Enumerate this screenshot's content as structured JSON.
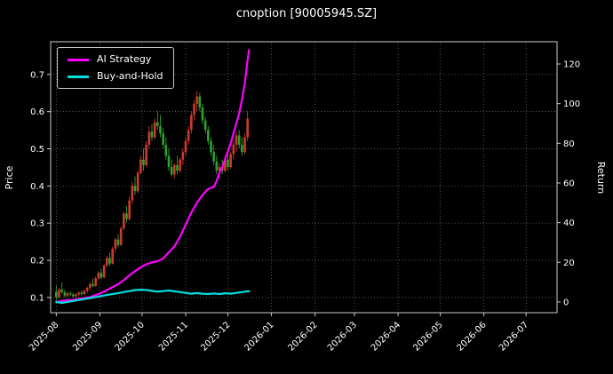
{
  "chart_data": {
    "type": "candlestick",
    "title": "cnoption [90005945.SZ]",
    "xlabel": "",
    "ylabel_left": "Price",
    "ylabel_right": "Return",
    "x_ticks": [
      "2025-08",
      "2025-09",
      "2025-10",
      "2025-11",
      "2025-12",
      "2026-01",
      "2026-02",
      "2026-03",
      "2026-04",
      "2026-05",
      "2026-06",
      "2026-07"
    ],
    "x_tick_days": [
      0,
      31,
      61,
      92,
      122,
      153,
      184,
      212,
      243,
      273,
      304,
      334
    ],
    "x_range": [
      -4,
      356
    ],
    "left_ticks": [
      0.1,
      0.2,
      0.3,
      0.4,
      0.5,
      0.6,
      0.7
    ],
    "left_range": [
      0.059,
      0.788
    ],
    "right_ticks": [
      0,
      20,
      40,
      60,
      80,
      100,
      120
    ],
    "right_range": [
      -5.4,
      131.2
    ],
    "grid": true,
    "legend_position": "upper-left",
    "colors": {
      "background": "#000000",
      "up": "#cc3a2b",
      "down": "#2da12f",
      "grid": "#787878",
      "frame": "#cccccc",
      "text": "#ffffff",
      "ai_strategy": "#ff00ff",
      "buy_and_hold": "#00dede"
    },
    "candles": [
      [
        0,
        0.115,
        0.132,
        0.092,
        0.101
      ],
      [
        2,
        0.101,
        0.126,
        0.096,
        0.121
      ],
      [
        4,
        0.121,
        0.141,
        0.11,
        0.114
      ],
      [
        6,
        0.114,
        0.121,
        0.1,
        0.105
      ],
      [
        8,
        0.105,
        0.116,
        0.1,
        0.111
      ],
      [
        10,
        0.111,
        0.116,
        0.104,
        0.108
      ],
      [
        12,
        0.108,
        0.112,
        0.099,
        0.103
      ],
      [
        14,
        0.103,
        0.111,
        0.097,
        0.108
      ],
      [
        16,
        0.108,
        0.116,
        0.103,
        0.113
      ],
      [
        18,
        0.113,
        0.119,
        0.105,
        0.109
      ],
      [
        20,
        0.109,
        0.121,
        0.106,
        0.118
      ],
      [
        22,
        0.118,
        0.129,
        0.112,
        0.126
      ],
      [
        24,
        0.126,
        0.141,
        0.12,
        0.136
      ],
      [
        26,
        0.136,
        0.151,
        0.127,
        0.131
      ],
      [
        28,
        0.131,
        0.156,
        0.129,
        0.152
      ],
      [
        30,
        0.152,
        0.171,
        0.146,
        0.166
      ],
      [
        32,
        0.166,
        0.176,
        0.149,
        0.154
      ],
      [
        34,
        0.154,
        0.191,
        0.151,
        0.186
      ],
      [
        36,
        0.186,
        0.212,
        0.181,
        0.206
      ],
      [
        38,
        0.206,
        0.221,
        0.184,
        0.191
      ],
      [
        40,
        0.191,
        0.236,
        0.189,
        0.231
      ],
      [
        42,
        0.231,
        0.261,
        0.221,
        0.256
      ],
      [
        44,
        0.256,
        0.271,
        0.234,
        0.241
      ],
      [
        46,
        0.241,
        0.291,
        0.238,
        0.286
      ],
      [
        48,
        0.286,
        0.331,
        0.281,
        0.326
      ],
      [
        50,
        0.326,
        0.346,
        0.301,
        0.311
      ],
      [
        52,
        0.311,
        0.371,
        0.306,
        0.361
      ],
      [
        54,
        0.361,
        0.411,
        0.351,
        0.401
      ],
      [
        56,
        0.401,
        0.426,
        0.376,
        0.386
      ],
      [
        58,
        0.386,
        0.441,
        0.381,
        0.436
      ],
      [
        60,
        0.436,
        0.481,
        0.431,
        0.471
      ],
      [
        62,
        0.471,
        0.501,
        0.441,
        0.456
      ],
      [
        64,
        0.456,
        0.521,
        0.451,
        0.511
      ],
      [
        66,
        0.511,
        0.561,
        0.501,
        0.546
      ],
      [
        68,
        0.546,
        0.566,
        0.521,
        0.531
      ],
      [
        70,
        0.531,
        0.581,
        0.526,
        0.571
      ],
      [
        72,
        0.571,
        0.601,
        0.551,
        0.561
      ],
      [
        74,
        0.561,
        0.591,
        0.531,
        0.541
      ],
      [
        76,
        0.541,
        0.556,
        0.501,
        0.511
      ],
      [
        78,
        0.511,
        0.531,
        0.471,
        0.481
      ],
      [
        80,
        0.481,
        0.501,
        0.441,
        0.451
      ],
      [
        82,
        0.451,
        0.471,
        0.426,
        0.431
      ],
      [
        84,
        0.431,
        0.461,
        0.421,
        0.456
      ],
      [
        86,
        0.456,
        0.481,
        0.431,
        0.441
      ],
      [
        88,
        0.441,
        0.476,
        0.436,
        0.471
      ],
      [
        90,
        0.471,
        0.501,
        0.456,
        0.491
      ],
      [
        92,
        0.491,
        0.531,
        0.481,
        0.521
      ],
      [
        94,
        0.521,
        0.561,
        0.511,
        0.551
      ],
      [
        96,
        0.551,
        0.601,
        0.541,
        0.591
      ],
      [
        98,
        0.591,
        0.631,
        0.576,
        0.621
      ],
      [
        100,
        0.621,
        0.656,
        0.601,
        0.641
      ],
      [
        102,
        0.641,
        0.651,
        0.601,
        0.611
      ],
      [
        104,
        0.611,
        0.621,
        0.566,
        0.576
      ],
      [
        106,
        0.576,
        0.586,
        0.541,
        0.551
      ],
      [
        108,
        0.551,
        0.561,
        0.511,
        0.521
      ],
      [
        110,
        0.521,
        0.531,
        0.481,
        0.491
      ],
      [
        112,
        0.491,
        0.511,
        0.456,
        0.466
      ],
      [
        114,
        0.466,
        0.481,
        0.431,
        0.441
      ],
      [
        116,
        0.441,
        0.461,
        0.421,
        0.451
      ],
      [
        118,
        0.451,
        0.471,
        0.431,
        0.441
      ],
      [
        120,
        0.441,
        0.481,
        0.436,
        0.471
      ],
      [
        122,
        0.471,
        0.501,
        0.441,
        0.451
      ],
      [
        124,
        0.451,
        0.491,
        0.446,
        0.486
      ],
      [
        126,
        0.486,
        0.521,
        0.471,
        0.511
      ],
      [
        128,
        0.511,
        0.546,
        0.491,
        0.536
      ],
      [
        130,
        0.536,
        0.551,
        0.501,
        0.511
      ],
      [
        132,
        0.511,
        0.531,
        0.481,
        0.491
      ],
      [
        134,
        0.491,
        0.541,
        0.486,
        0.531
      ],
      [
        136,
        0.531,
        0.601,
        0.521,
        0.581
      ]
    ],
    "series": [
      {
        "name": "AI Strategy",
        "color": "#ff00ff",
        "axis": "right",
        "points": [
          [
            0,
            0
          ],
          [
            4,
            0.5
          ],
          [
            8,
            1
          ],
          [
            12,
            1
          ],
          [
            16,
            1.5
          ],
          [
            20,
            2
          ],
          [
            24,
            2.5
          ],
          [
            28,
            3.5
          ],
          [
            32,
            4.5
          ],
          [
            36,
            6
          ],
          [
            40,
            7.5
          ],
          [
            44,
            9
          ],
          [
            48,
            11
          ],
          [
            52,
            13.5
          ],
          [
            56,
            15.5
          ],
          [
            60,
            17.5
          ],
          [
            64,
            19
          ],
          [
            68,
            20
          ],
          [
            72,
            20.5
          ],
          [
            76,
            22
          ],
          [
            80,
            25
          ],
          [
            84,
            28
          ],
          [
            88,
            33
          ],
          [
            92,
            39
          ],
          [
            96,
            45
          ],
          [
            100,
            50
          ],
          [
            104,
            54
          ],
          [
            108,
            57
          ],
          [
            112,
            58
          ],
          [
            114,
            61
          ],
          [
            116,
            65
          ],
          [
            118,
            68
          ],
          [
            120,
            72
          ],
          [
            122,
            76
          ],
          [
            124,
            80
          ],
          [
            126,
            85
          ],
          [
            128,
            90
          ],
          [
            130,
            95
          ],
          [
            132,
            102
          ],
          [
            134,
            110
          ],
          [
            135,
            116
          ],
          [
            136,
            122
          ],
          [
            137,
            127
          ]
        ]
      },
      {
        "name": "Buy-and-Hold",
        "color": "#00dede",
        "axis": "right",
        "points": [
          [
            0,
            0
          ],
          [
            4,
            -0.5
          ],
          [
            8,
            0
          ],
          [
            12,
            0.5
          ],
          [
            16,
            1
          ],
          [
            20,
            1.5
          ],
          [
            24,
            2
          ],
          [
            28,
            2.5
          ],
          [
            32,
            3
          ],
          [
            36,
            3.5
          ],
          [
            40,
            4
          ],
          [
            44,
            4.5
          ],
          [
            48,
            5
          ],
          [
            52,
            5.5
          ],
          [
            56,
            6
          ],
          [
            60,
            6.2
          ],
          [
            64,
            6
          ],
          [
            68,
            5.6
          ],
          [
            72,
            5.2
          ],
          [
            76,
            5.5
          ],
          [
            80,
            5.8
          ],
          [
            84,
            5.4
          ],
          [
            88,
            5
          ],
          [
            92,
            4.6
          ],
          [
            96,
            4.2
          ],
          [
            100,
            4.5
          ],
          [
            104,
            4.2
          ],
          [
            108,
            4
          ],
          [
            112,
            4.3
          ],
          [
            116,
            4
          ],
          [
            120,
            4.4
          ],
          [
            124,
            4.2
          ],
          [
            128,
            4.6
          ],
          [
            132,
            5
          ],
          [
            136,
            5.4
          ],
          [
            137,
            5.4
          ]
        ]
      }
    ]
  }
}
